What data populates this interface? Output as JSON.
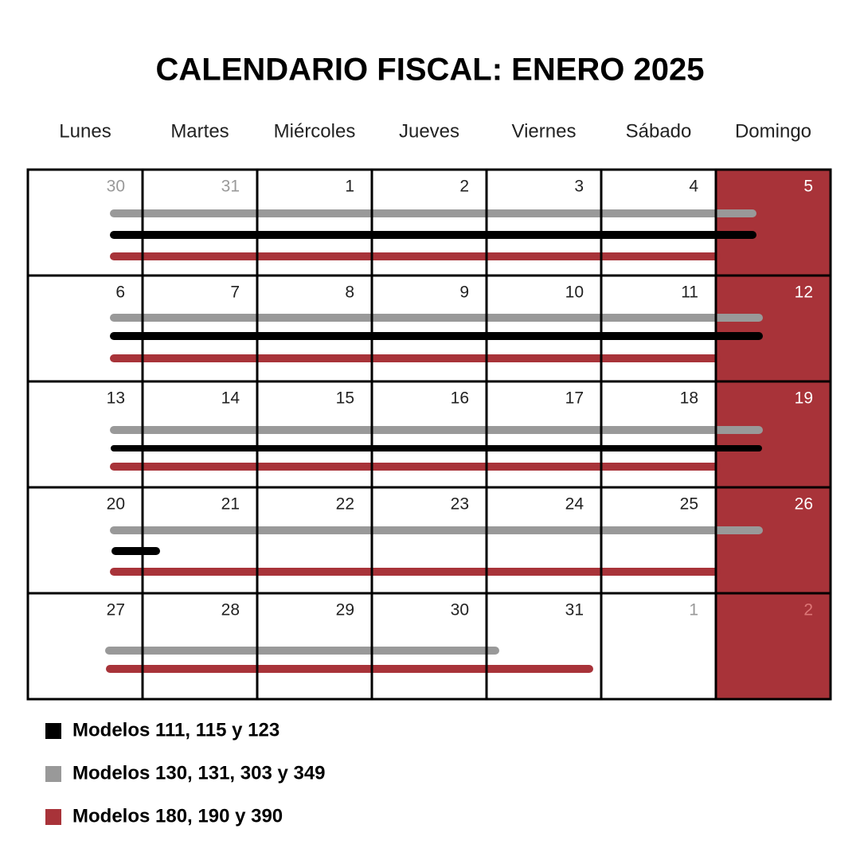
{
  "title": "CALENDARIO FISCAL: ENERO 2025",
  "weekdays": [
    "Lunes",
    "Martes",
    "Miércoles",
    "Jueves",
    "Viernes",
    "Sábado",
    "Domingo"
  ],
  "weeks": [
    [
      30,
      31,
      1,
      2,
      3,
      4,
      5
    ],
    [
      6,
      7,
      8,
      9,
      10,
      11,
      12
    ],
    [
      13,
      14,
      15,
      16,
      17,
      18,
      19
    ],
    [
      20,
      21,
      22,
      23,
      24,
      25,
      26
    ],
    [
      27,
      28,
      29,
      30,
      31,
      1,
      2
    ]
  ],
  "legend": [
    "Modelos 111, 115 y 123",
    "Modelos 130, 131, 303 y 349",
    "Modelos 180, 190 y 390"
  ]
}
